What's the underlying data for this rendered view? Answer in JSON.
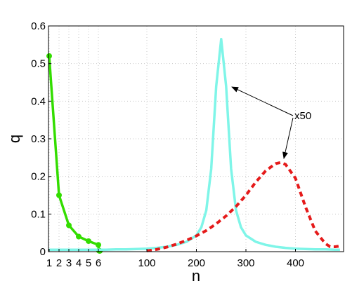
{
  "chart_data": {
    "type": "line",
    "title": "",
    "xlabel": "n",
    "ylabel": "q",
    "ylim": [
      0,
      0.6
    ],
    "grid": true,
    "xticks": [
      "1",
      "2",
      "3",
      "4",
      "5",
      "6",
      "100",
      "200",
      "300",
      "400"
    ],
    "yticks": [
      "0",
      "0.1",
      "0.2",
      "0.3",
      "0.4",
      "0.5",
      "0.6"
    ],
    "annotation": "x50",
    "series": [
      {
        "color": "#33dd00",
        "style": "solid-markers",
        "x": [
          1,
          2,
          3,
          4,
          5,
          6,
          7,
          8,
          9
        ],
        "y": [
          0.52,
          0.15,
          0.07,
          0.04,
          0.028,
          0.018,
          0.003,
          0.002,
          0.002
        ]
      },
      {
        "color": "#7ff5e8",
        "style": "solid",
        "x": [
          1,
          20,
          40,
          60,
          80,
          100,
          120,
          140,
          160,
          180,
          200,
          210,
          220,
          230,
          240,
          250,
          260,
          270,
          280,
          290,
          300,
          320,
          340,
          360,
          380,
          400,
          420,
          440,
          460,
          480,
          490
        ],
        "y": [
          0.005,
          0.005,
          0.006,
          0.006,
          0.007,
          0.008,
          0.01,
          0.013,
          0.018,
          0.026,
          0.043,
          0.065,
          0.11,
          0.22,
          0.44,
          0.565,
          0.44,
          0.22,
          0.11,
          0.065,
          0.043,
          0.026,
          0.018,
          0.013,
          0.01,
          0.008,
          0.007,
          0.006,
          0.006,
          0.005,
          0.005
        ]
      },
      {
        "color": "#e51a1a",
        "style": "dashed",
        "x": [
          100,
          120,
          140,
          160,
          180,
          200,
          220,
          240,
          260,
          280,
          300,
          320,
          340,
          360,
          370,
          380,
          400,
          420,
          440,
          460,
          470,
          480,
          490
        ],
        "y": [
          0.002,
          0.006,
          0.012,
          0.02,
          0.03,
          0.042,
          0.056,
          0.074,
          0.095,
          0.12,
          0.15,
          0.185,
          0.215,
          0.234,
          0.237,
          0.232,
          0.195,
          0.12,
          0.055,
          0.022,
          0.013,
          0.013,
          0.015
        ]
      }
    ]
  }
}
